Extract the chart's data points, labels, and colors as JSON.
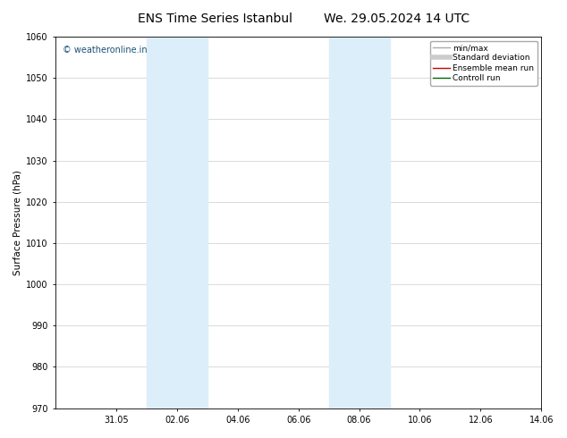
{
  "title_left": "ENS Time Series Istanbul",
  "title_right": "We. 29.05.2024 14 UTC",
  "ylabel": "Surface Pressure (hPa)",
  "ylim": [
    970,
    1060
  ],
  "yticks": [
    970,
    980,
    990,
    1000,
    1010,
    1020,
    1030,
    1040,
    1050,
    1060
  ],
  "xlim": [
    0,
    16
  ],
  "xtick_labels": [
    "31.05",
    "02.06",
    "04.06",
    "06.06",
    "08.06",
    "10.06",
    "12.06",
    "14.06"
  ],
  "xtick_positions": [
    2,
    4,
    6,
    8,
    10,
    12,
    14,
    16
  ],
  "shaded_bands": [
    {
      "x_start": 3,
      "x_end": 5
    },
    {
      "x_start": 9,
      "x_end": 11
    }
  ],
  "shaded_color": "#dceefa",
  "watermark_text": "© weatheronline.in",
  "watermark_color": "#1a5276",
  "legend_items": [
    {
      "label": "min/max",
      "color": "#aaaaaa",
      "lw": 1.0,
      "style": "solid"
    },
    {
      "label": "Standard deviation",
      "color": "#cccccc",
      "lw": 4,
      "style": "solid"
    },
    {
      "label": "Ensemble mean run",
      "color": "#cc0000",
      "lw": 1.0,
      "style": "solid"
    },
    {
      "label": "Controll run",
      "color": "#006600",
      "lw": 1.0,
      "style": "solid"
    }
  ],
  "bg_color": "#ffffff",
  "grid_color": "#cccccc",
  "axis_label_fontsize": 7.5,
  "title_fontsize": 10,
  "tick_fontsize": 7,
  "watermark_fontsize": 7,
  "legend_fontsize": 6.5
}
